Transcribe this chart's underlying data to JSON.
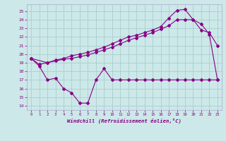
{
  "bg_color": "#cce8e8",
  "grid_color": "#aacece",
  "line_color": "#880088",
  "xlabel": "Windchill (Refroidissement éolien,°C)",
  "ylabel_ticks": [
    14,
    15,
    16,
    17,
    18,
    19,
    20,
    21,
    22,
    23,
    24,
    25
  ],
  "xlim": [
    -0.5,
    23.5
  ],
  "ylim": [
    13.5,
    25.8
  ],
  "xticks": [
    0,
    1,
    2,
    3,
    4,
    5,
    6,
    7,
    8,
    9,
    10,
    11,
    12,
    13,
    14,
    15,
    16,
    17,
    18,
    19,
    20,
    21,
    22,
    23
  ],
  "line1_x": [
    0,
    1,
    2,
    3,
    4,
    5,
    6,
    7,
    8,
    9,
    10,
    11,
    12,
    13,
    14,
    15,
    16,
    17,
    18,
    19,
    20,
    21,
    22,
    23
  ],
  "line1_y": [
    19.5,
    18.6,
    17.0,
    17.2,
    16.0,
    15.5,
    14.3,
    14.3,
    17.0,
    18.3,
    17.0,
    17.0,
    17.0,
    17.0,
    17.0,
    17.0,
    17.0,
    17.0,
    17.0,
    17.0,
    17.0,
    17.0,
    17.0,
    17.0
  ],
  "line2_x": [
    0,
    1,
    2,
    3,
    4,
    5,
    6,
    7,
    8,
    9,
    10,
    11,
    12,
    13,
    14,
    15,
    16,
    17,
    18,
    19,
    20,
    21,
    22,
    23
  ],
  "line2_y": [
    19.5,
    18.8,
    19.0,
    19.3,
    19.5,
    19.8,
    20.0,
    20.2,
    20.5,
    20.8,
    21.2,
    21.6,
    22.0,
    22.2,
    22.5,
    22.8,
    23.2,
    24.2,
    25.1,
    25.2,
    24.0,
    22.8,
    22.5,
    21.0
  ],
  "line3_x": [
    0,
    2,
    3,
    4,
    5,
    6,
    7,
    8,
    9,
    10,
    11,
    12,
    13,
    14,
    15,
    16,
    17,
    18,
    19,
    20,
    21,
    22,
    23
  ],
  "line3_y": [
    19.5,
    19.0,
    19.2,
    19.4,
    19.5,
    19.7,
    19.9,
    20.2,
    20.5,
    20.8,
    21.2,
    21.6,
    21.9,
    22.2,
    22.5,
    22.9,
    23.3,
    24.0,
    24.0,
    24.0,
    23.5,
    22.3,
    17.0
  ]
}
